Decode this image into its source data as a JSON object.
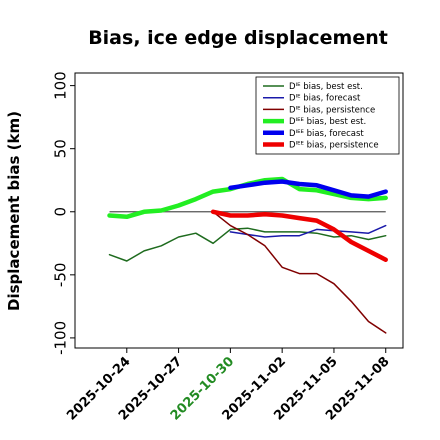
{
  "chart_data": {
    "type": "line",
    "title": "Bias, ice edge displacement",
    "ylabel": "Displacement bias (km)",
    "xlabel": "",
    "ylim": [
      -108,
      110
    ],
    "xlim": [
      "2025-10-21",
      "2025-11-09"
    ],
    "grid": false,
    "reference_line": 0,
    "legend_position": "top-right",
    "yticks": [
      100,
      50,
      0,
      -50,
      -100
    ],
    "xticks": [
      {
        "label": "2025-10-24",
        "date": "2025-10-24",
        "color": "#000000"
      },
      {
        "label": "2025-10-27",
        "date": "2025-10-27",
        "color": "#000000"
      },
      {
        "label": "2025-10-30",
        "date": "2025-10-30",
        "color": "#228B22"
      },
      {
        "label": "2025-11-02",
        "date": "2025-11-02",
        "color": "#000000"
      },
      {
        "label": "2025-11-05",
        "date": "2025-11-05",
        "color": "#000000"
      },
      {
        "label": "2025-11-08",
        "date": "2025-11-08",
        "color": "#000000"
      }
    ],
    "series": [
      {
        "name": "Dᴵᴱ bias, best est.",
        "color": "#1e6b1e",
        "width": 1.5,
        "x": [
          "2025-10-23",
          "2025-10-24",
          "2025-10-25",
          "2025-10-26",
          "2025-10-27",
          "2025-10-28",
          "2025-10-29",
          "2025-10-30",
          "2025-10-31",
          "2025-11-01",
          "2025-11-02",
          "2025-11-03",
          "2025-11-04",
          "2025-11-05",
          "2025-11-06",
          "2025-11-07",
          "2025-11-08"
        ],
        "y": [
          -34,
          -39,
          -31,
          -27,
          -20,
          -17,
          -25,
          -14,
          -13,
          -16,
          -16,
          -16,
          -17,
          -20,
          -19,
          -22,
          -19
        ]
      },
      {
        "name": "Dᴵᴱ bias, forecast",
        "color": "#1a1aaa",
        "width": 1.5,
        "x": [
          "2025-10-30",
          "2025-10-31",
          "2025-11-01",
          "2025-11-02",
          "2025-11-03",
          "2025-11-04",
          "2025-11-05",
          "2025-11-06",
          "2025-11-07",
          "2025-11-08"
        ],
        "y": [
          -16,
          -18,
          -20,
          -19,
          -19,
          -14,
          -15,
          -16,
          -17,
          -11
        ]
      },
      {
        "name": "Dᴵᴱ bias, persistence",
        "color": "#800000",
        "width": 1.5,
        "x": [
          "2025-10-29",
          "2025-10-30",
          "2025-10-31",
          "2025-11-01",
          "2025-11-02",
          "2025-11-03",
          "2025-11-04",
          "2025-11-05",
          "2025-11-06",
          "2025-11-07",
          "2025-11-08"
        ],
        "y": [
          0,
          -11,
          -18,
          -27,
          -44,
          -49,
          -49,
          -57,
          -71,
          -87,
          -96
        ]
      },
      {
        "name": "Dᴵᴱᴱ bias, best est.",
        "color": "#22ee22",
        "width": 4.5,
        "x": [
          "2025-10-23",
          "2025-10-24",
          "2025-10-25",
          "2025-10-26",
          "2025-10-27",
          "2025-10-28",
          "2025-10-29",
          "2025-10-30",
          "2025-10-31",
          "2025-11-01",
          "2025-11-02",
          "2025-11-03",
          "2025-11-04",
          "2025-11-05",
          "2025-11-06",
          "2025-11-07",
          "2025-11-08"
        ],
        "y": [
          -3,
          -4,
          0,
          1,
          5,
          10,
          16,
          18,
          22,
          25,
          26,
          18,
          17,
          14,
          11,
          10,
          11
        ]
      },
      {
        "name": "Dᴵᴱᴱ bias, forecast",
        "color": "#0000ee",
        "width": 4.5,
        "x": [
          "2025-10-30",
          "2025-10-31",
          "2025-11-01",
          "2025-11-02",
          "2025-11-03",
          "2025-11-04",
          "2025-11-05",
          "2025-11-06",
          "2025-11-07",
          "2025-11-08"
        ],
        "y": [
          19,
          21,
          23,
          24,
          22,
          21,
          17,
          13,
          12,
          16
        ]
      },
      {
        "name": "Dᴵᴱᴱ bias, persistence",
        "color": "#ee0000",
        "width": 4.5,
        "x": [
          "2025-10-29",
          "2025-10-30",
          "2025-10-31",
          "2025-11-01",
          "2025-11-02",
          "2025-11-03",
          "2025-11-04",
          "2025-11-05",
          "2025-11-06",
          "2025-11-07",
          "2025-11-08"
        ],
        "y": [
          0,
          -3,
          -3,
          -2,
          -3,
          -5,
          -7,
          -14,
          -24,
          -31,
          -38
        ]
      }
    ]
  }
}
